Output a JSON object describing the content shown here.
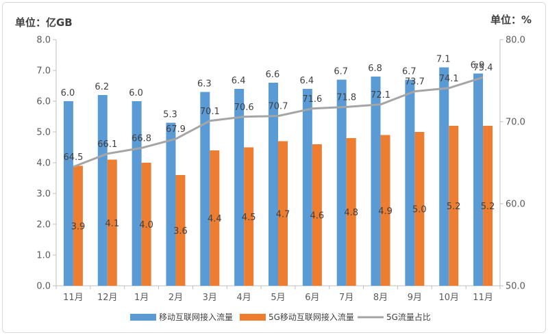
{
  "chart_data": {
    "type": "bar",
    "categories": [
      "11月",
      "12月",
      "1月",
      "2月",
      "3月",
      "4月",
      "5月",
      "6月",
      "7月",
      "8月",
      "9月",
      "10月",
      "11月"
    ],
    "series": [
      {
        "name": "移动互联网接入流量",
        "type": "bar",
        "axis": "left",
        "color": "#5b9bd5",
        "values": [
          6.0,
          6.2,
          6.0,
          5.3,
          6.3,
          6.4,
          6.6,
          6.4,
          6.7,
          6.8,
          6.7,
          7.1,
          6.9
        ]
      },
      {
        "name": "5G移动互联网接入流量",
        "type": "bar",
        "axis": "left",
        "color": "#ed7d31",
        "values": [
          3.9,
          4.1,
          4.0,
          3.6,
          4.4,
          4.5,
          4.7,
          4.6,
          4.8,
          4.9,
          5.0,
          5.2,
          5.2
        ]
      },
      {
        "name": "5G流量占比",
        "type": "line",
        "axis": "right",
        "color": "#a5a5a5",
        "values": [
          64.5,
          66.1,
          66.8,
          67.9,
          70.1,
          70.6,
          70.7,
          71.6,
          71.8,
          72.1,
          73.7,
          74.1,
          75.4
        ]
      }
    ],
    "left_axis": {
      "unit_label": "单位：亿GB",
      "min": 0,
      "max": 8,
      "step": 1,
      "ticks": [
        "0.0",
        "1.0",
        "2.0",
        "3.0",
        "4.0",
        "5.0",
        "6.0",
        "7.0",
        "8.0"
      ]
    },
    "right_axis": {
      "unit_label": "单位：%",
      "min": 50,
      "max": 80,
      "step": 10,
      "ticks": [
        "50.0",
        "60.0",
        "70.0",
        "80.0"
      ]
    },
    "legend_position": "bottom",
    "grid": false
  }
}
